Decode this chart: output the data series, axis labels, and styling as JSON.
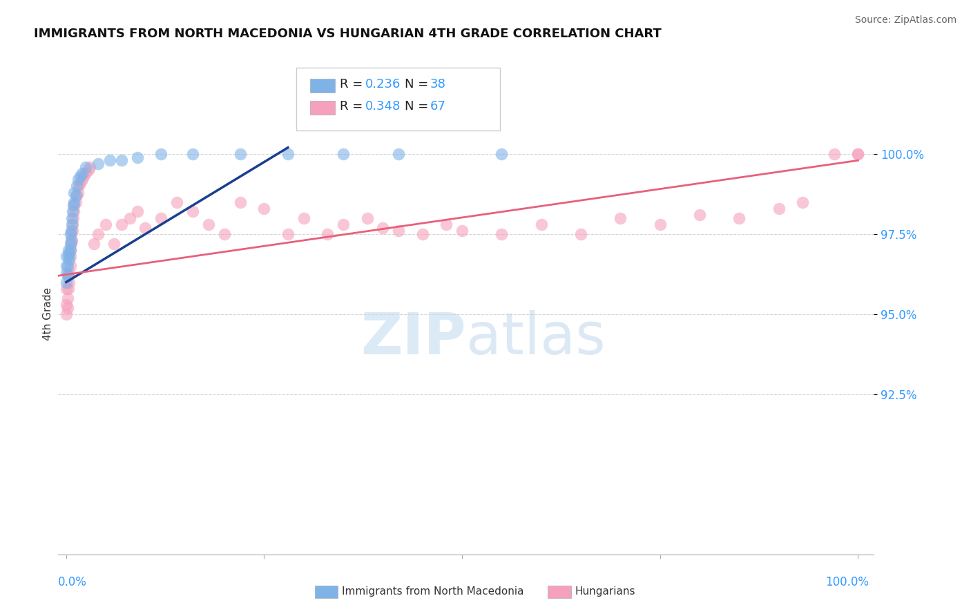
{
  "title": "IMMIGRANTS FROM NORTH MACEDONIA VS HUNGARIAN 4TH GRADE CORRELATION CHART",
  "source": "Source: ZipAtlas.com",
  "ylabel": "4th Grade",
  "ytick_labels": [
    "92.5%",
    "95.0%",
    "97.5%",
    "100.0%"
  ],
  "ytick_values": [
    0.925,
    0.95,
    0.975,
    1.0
  ],
  "xlim": [
    -0.01,
    1.02
  ],
  "ylim": [
    0.875,
    1.025
  ],
  "legend_blue_r": "0.236",
  "legend_blue_n": "38",
  "legend_pink_r": "0.348",
  "legend_pink_n": "67",
  "blue_color": "#7fb3e8",
  "pink_color": "#f5a0bc",
  "blue_line_color": "#1a3f8f",
  "pink_line_color": "#e8607a",
  "blue_scatter_x": [
    0.0,
    0.0,
    0.0,
    0.0,
    0.002,
    0.002,
    0.003,
    0.003,
    0.004,
    0.004,
    0.005,
    0.005,
    0.005,
    0.006,
    0.006,
    0.007,
    0.007,
    0.008,
    0.009,
    0.01,
    0.01,
    0.012,
    0.013,
    0.015,
    0.018,
    0.02,
    0.025,
    0.04,
    0.055,
    0.07,
    0.09,
    0.12,
    0.16,
    0.22,
    0.28,
    0.35,
    0.42,
    0.55
  ],
  "blue_scatter_y": [
    0.96,
    0.963,
    0.965,
    0.968,
    0.962,
    0.965,
    0.968,
    0.97,
    0.967,
    0.969,
    0.97,
    0.972,
    0.975,
    0.973,
    0.976,
    0.978,
    0.98,
    0.982,
    0.984,
    0.985,
    0.988,
    0.987,
    0.99,
    0.992,
    0.993,
    0.994,
    0.996,
    0.997,
    0.998,
    0.998,
    0.999,
    1.0,
    1.0,
    1.0,
    1.0,
    1.0,
    1.0,
    1.0
  ],
  "pink_scatter_x": [
    0.0,
    0.0,
    0.0,
    0.002,
    0.002,
    0.003,
    0.003,
    0.004,
    0.004,
    0.005,
    0.005,
    0.005,
    0.006,
    0.006,
    0.007,
    0.008,
    0.008,
    0.009,
    0.01,
    0.01,
    0.012,
    0.013,
    0.015,
    0.016,
    0.018,
    0.02,
    0.022,
    0.025,
    0.028,
    0.03,
    0.035,
    0.04,
    0.05,
    0.06,
    0.07,
    0.08,
    0.09,
    0.1,
    0.12,
    0.14,
    0.16,
    0.18,
    0.2,
    0.22,
    0.25,
    0.28,
    0.3,
    0.33,
    0.35,
    0.38,
    0.4,
    0.42,
    0.45,
    0.48,
    0.5,
    0.55,
    0.6,
    0.65,
    0.7,
    0.75,
    0.8,
    0.85,
    0.9,
    0.93,
    0.97,
    1.0,
    1.0
  ],
  "pink_scatter_y": [
    0.95,
    0.953,
    0.958,
    0.952,
    0.955,
    0.958,
    0.962,
    0.96,
    0.963,
    0.965,
    0.968,
    0.97,
    0.972,
    0.975,
    0.973,
    0.976,
    0.978,
    0.98,
    0.982,
    0.984,
    0.985,
    0.987,
    0.988,
    0.99,
    0.991,
    0.992,
    0.993,
    0.994,
    0.995,
    0.996,
    0.972,
    0.975,
    0.978,
    0.972,
    0.978,
    0.98,
    0.982,
    0.977,
    0.98,
    0.985,
    0.982,
    0.978,
    0.975,
    0.985,
    0.983,
    0.975,
    0.98,
    0.975,
    0.978,
    0.98,
    0.977,
    0.976,
    0.975,
    0.978,
    0.976,
    0.975,
    0.978,
    0.975,
    0.98,
    0.978,
    0.981,
    0.98,
    0.983,
    0.985,
    1.0,
    1.0,
    1.0
  ]
}
